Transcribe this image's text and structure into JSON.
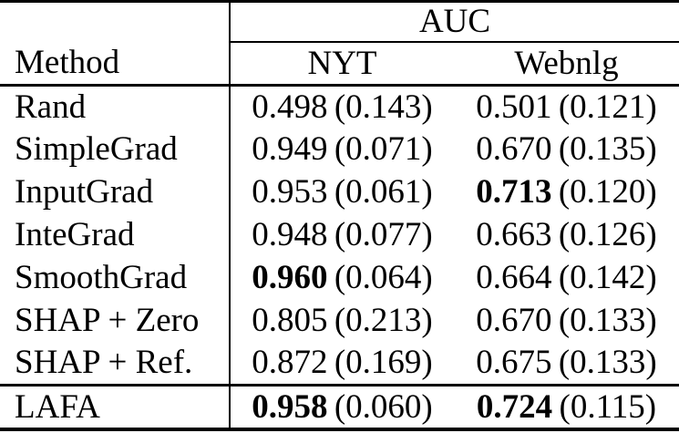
{
  "table": {
    "group_header": "AUC",
    "method_header": "Method",
    "columns": [
      "NYT",
      "Webnlg"
    ],
    "rows": [
      {
        "method": "Rand",
        "nyt": {
          "value": "0.498",
          "sd": "(0.143)",
          "bold": false
        },
        "webnlg": {
          "value": "0.501",
          "sd": "(0.121)",
          "bold": false
        }
      },
      {
        "method": "SimpleGrad",
        "nyt": {
          "value": "0.949",
          "sd": "(0.071)",
          "bold": false
        },
        "webnlg": {
          "value": "0.670",
          "sd": "(0.135)",
          "bold": false
        }
      },
      {
        "method": "InputGrad",
        "nyt": {
          "value": "0.953",
          "sd": "(0.061)",
          "bold": false
        },
        "webnlg": {
          "value": "0.713",
          "sd": "(0.120)",
          "bold": true
        }
      },
      {
        "method": "InteGrad",
        "nyt": {
          "value": "0.948",
          "sd": "(0.077)",
          "bold": false
        },
        "webnlg": {
          "value": "0.663",
          "sd": "(0.126)",
          "bold": false
        }
      },
      {
        "method": "SmoothGrad",
        "nyt": {
          "value": "0.960",
          "sd": "(0.064)",
          "bold": true
        },
        "webnlg": {
          "value": "0.664",
          "sd": "(0.142)",
          "bold": false
        }
      },
      {
        "method": "SHAP + Zero",
        "nyt": {
          "value": "0.805",
          "sd": "(0.213)",
          "bold": false
        },
        "webnlg": {
          "value": "0.670",
          "sd": "(0.133)",
          "bold": false
        }
      },
      {
        "method": "SHAP + Ref.",
        "nyt": {
          "value": "0.872",
          "sd": "(0.169)",
          "bold": false
        },
        "webnlg": {
          "value": "0.675",
          "sd": "(0.133)",
          "bold": false
        }
      },
      {
        "method": "LAFA",
        "nyt": {
          "value": "0.958",
          "sd": "(0.060)",
          "bold": true
        },
        "webnlg": {
          "value": "0.724",
          "sd": "(0.115)",
          "bold": true
        }
      }
    ],
    "colors": {
      "text": "#000000",
      "rule": "#000000",
      "background": "#ffffff"
    }
  }
}
